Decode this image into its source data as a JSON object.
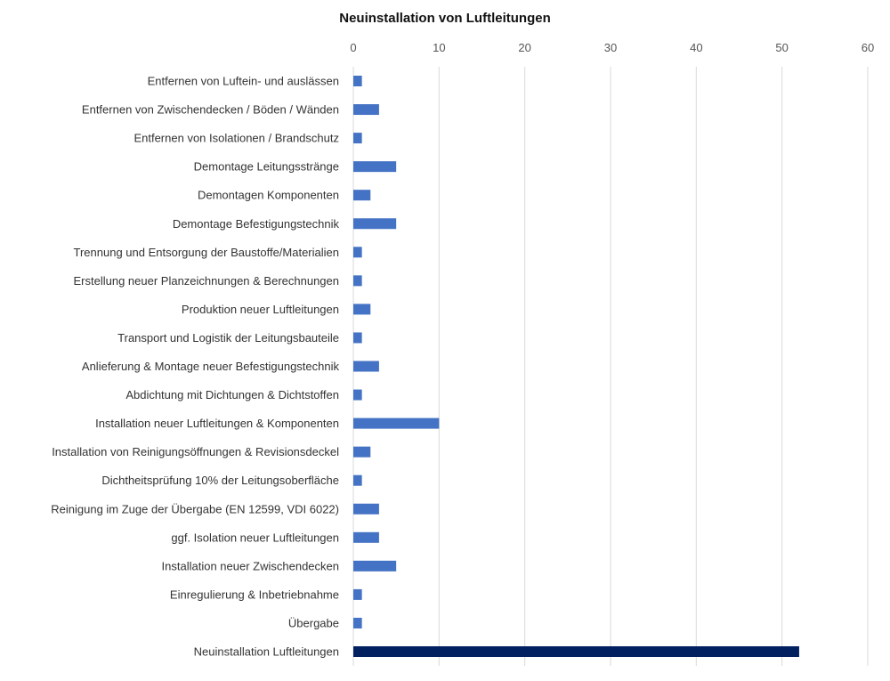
{
  "chart_data": {
    "type": "bar",
    "orientation": "horizontal",
    "title": "Neuinstallation von Luftleitungen",
    "xlabel": "",
    "ylabel": "",
    "xlim": [
      0,
      60
    ],
    "x_ticks": [
      0,
      10,
      20,
      30,
      40,
      50,
      60
    ],
    "x_axis_position": "top",
    "grid": true,
    "legend": "none",
    "categories": [
      "Entfernen von Luftein- und auslässen",
      "Entfernen von Zwischendecken / Böden / Wänden",
      "Entfernen von Isolationen / Brandschutz",
      "Demontage Leitungsstränge",
      "Demontagen Komponenten",
      "Demontage Befestigungstechnik",
      "Trennung und Entsorgung der Baustoffe/Materialien",
      "Erstellung neuer Planzeichnungen & Berechnungen",
      "Produktion neuer Luftleitungen",
      "Transport und Logistik der Leitungsbauteile",
      "Anlieferung & Montage neuer Befestigungstechnik",
      "Abdichtung mit Dichtungen & Dichtstoffen",
      "Installation neuer Luftleitungen & Komponenten",
      "Installation von Reinigungsöffnungen & Revisionsdeckel",
      "Dichtheitsprüfung 10% der Leitungsoberfläche",
      "Reinigung im Zuge der Übergabe (EN 12599, VDI 6022)",
      "ggf. Isolation neuer Luftleitungen",
      "Installation neuer Zwischendecken",
      "Einregulierung & Inbetriebnahme",
      "Übergabe",
      "Neuinstallation Luftleitungen"
    ],
    "values": [
      1,
      3,
      1,
      5,
      2,
      5,
      1,
      1,
      2,
      1,
      3,
      1,
      10,
      2,
      1,
      3,
      3,
      5,
      1,
      1,
      52
    ],
    "colors": {
      "bar": "#4472C4",
      "total_bar": "#002060",
      "grid": "#d9d9d9"
    }
  }
}
